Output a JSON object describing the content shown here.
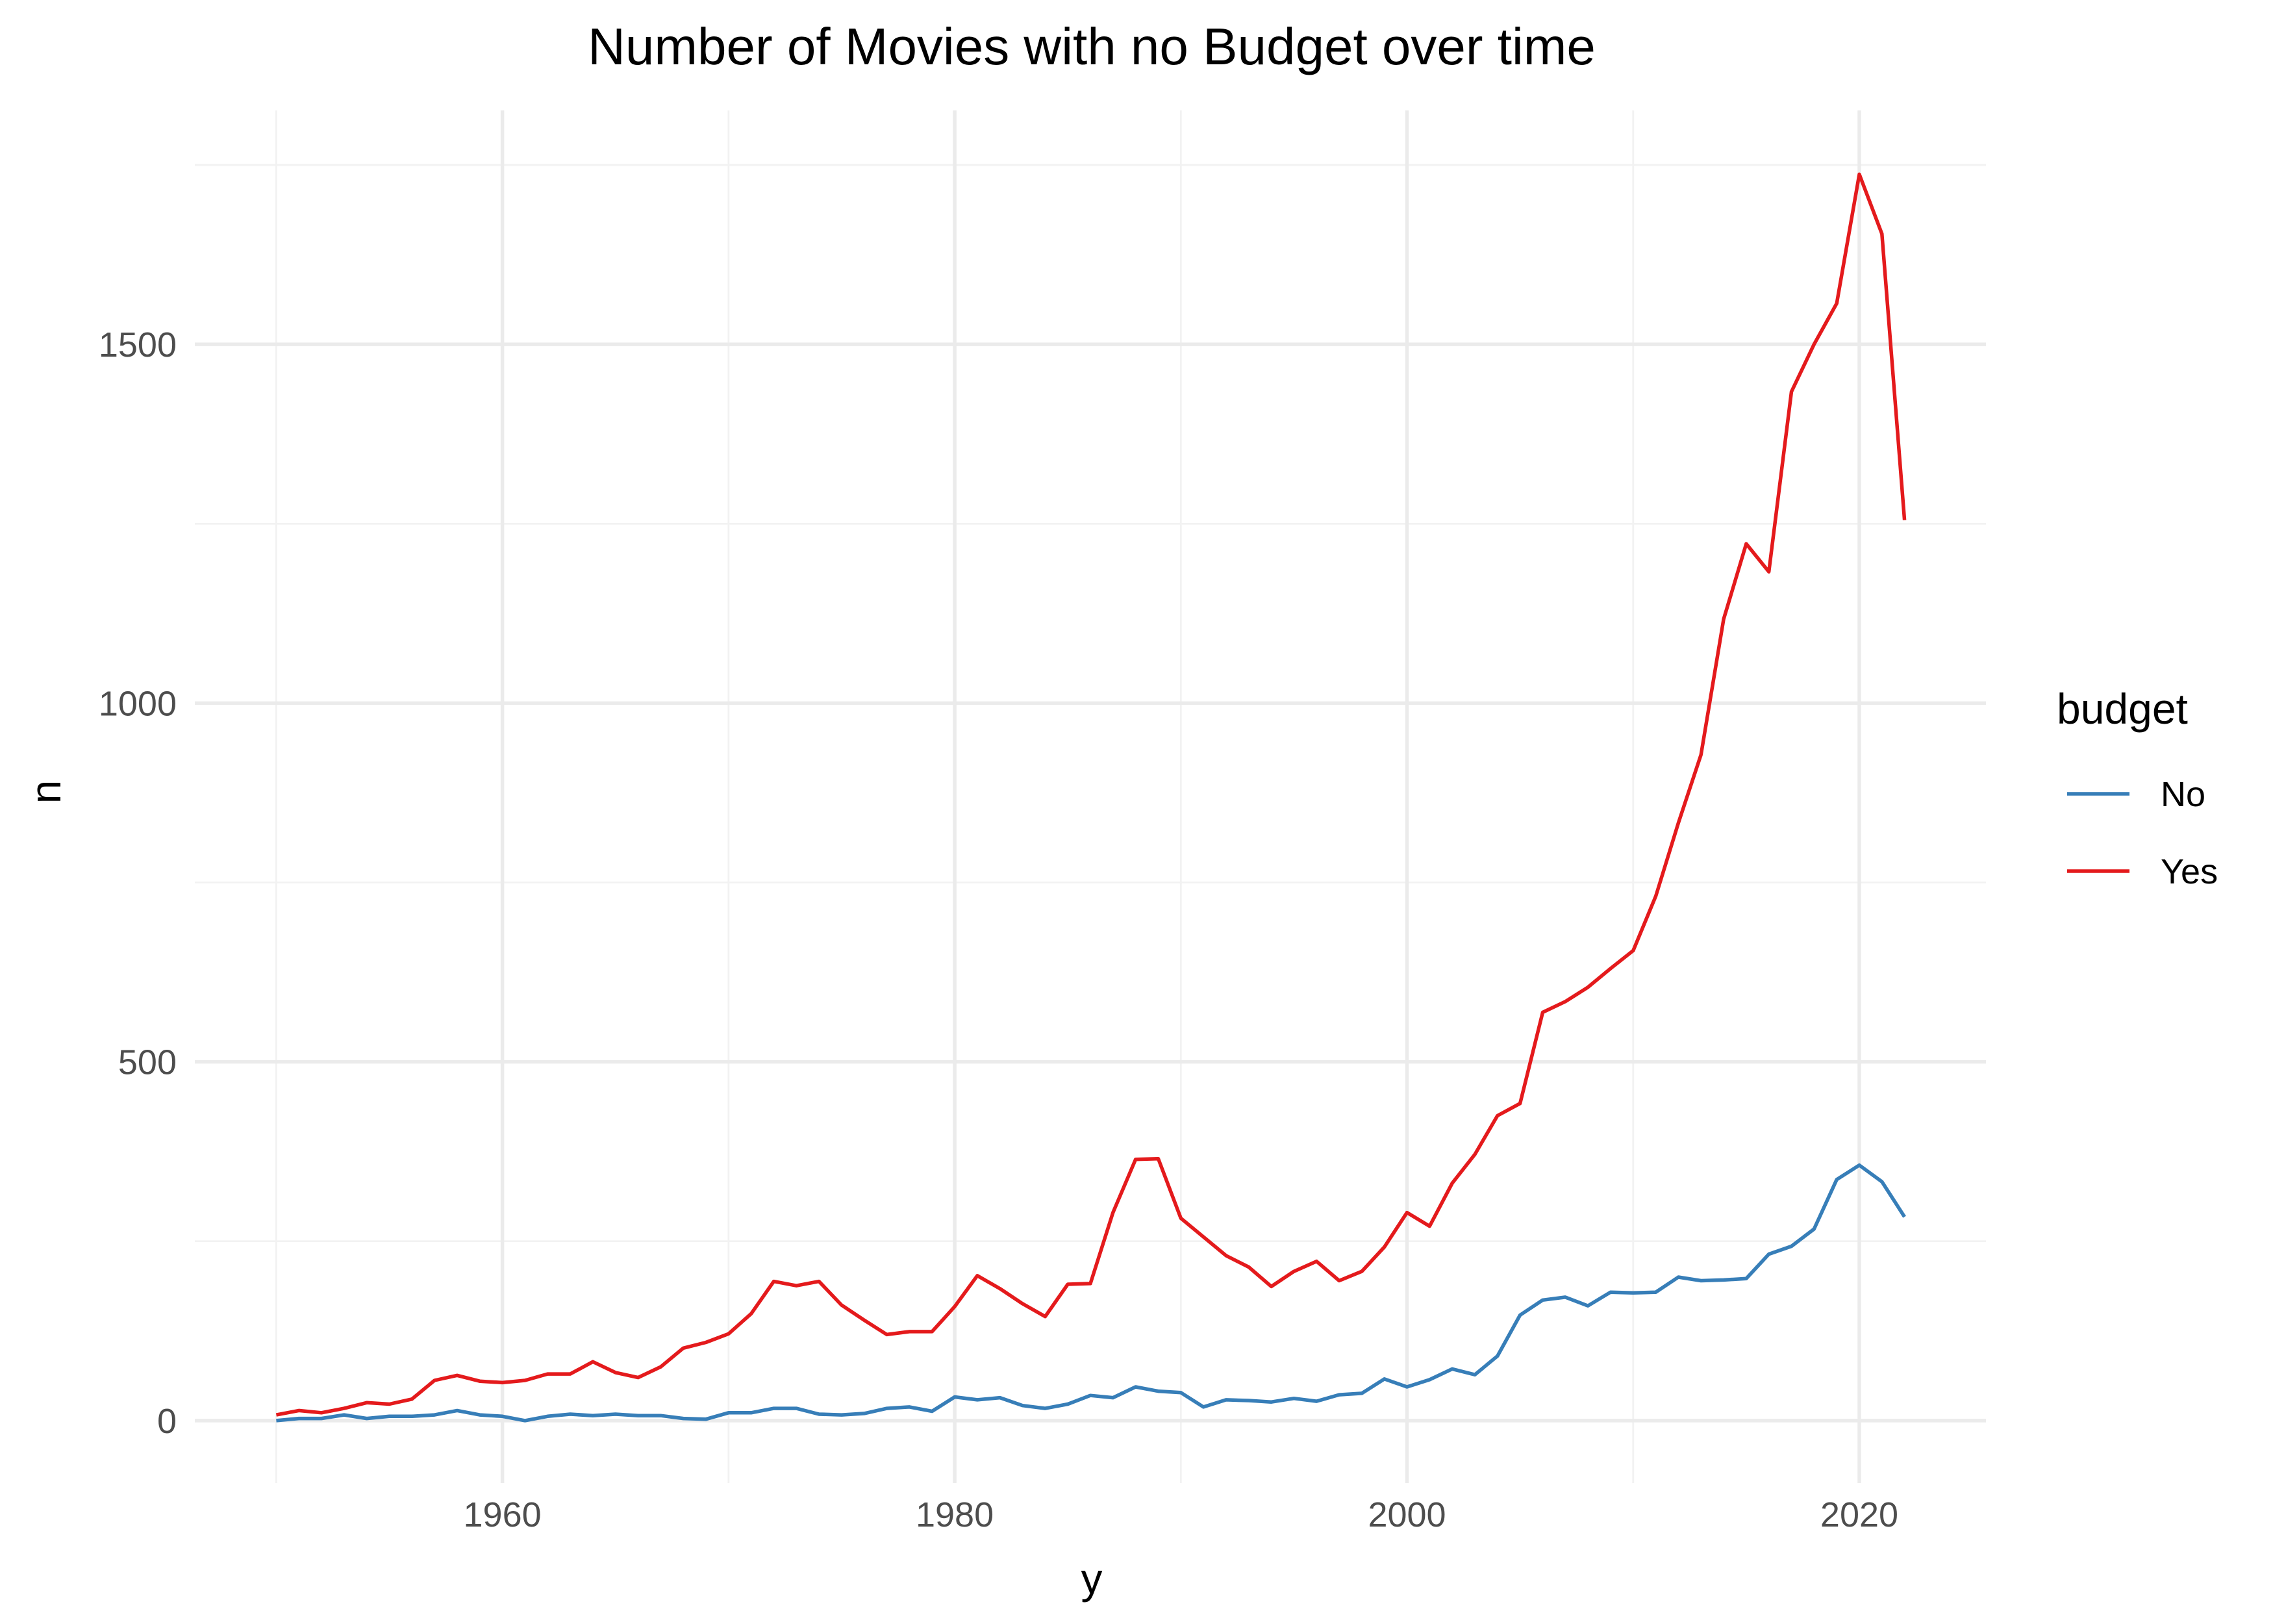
{
  "chart_data": {
    "type": "line",
    "title": "Number of Movies with no Budget over time",
    "xlabel": "y",
    "ylabel": "n",
    "xlim": [
      1946.4,
      2025.6
    ],
    "ylim": [
      -87,
      1826
    ],
    "x_ticks": [
      1960,
      1980,
      2000,
      2020
    ],
    "y_ticks": [
      0,
      500,
      1000,
      1500
    ],
    "x_minor_ticks": [
      1950,
      1970,
      1990,
      2010
    ],
    "y_minor_ticks": [
      250,
      750,
      1250,
      1750
    ],
    "grid": true,
    "legend": {
      "title": "budget",
      "position": "right",
      "entries": [
        "No",
        "Yes"
      ]
    },
    "colors": {
      "No": "#377eb8",
      "Yes": "#e41a1c"
    },
    "x": [
      1950,
      1951,
      1952,
      1953,
      1954,
      1955,
      1956,
      1957,
      1958,
      1959,
      1960,
      1961,
      1962,
      1963,
      1964,
      1965,
      1966,
      1967,
      1968,
      1969,
      1970,
      1971,
      1972,
      1973,
      1974,
      1975,
      1976,
      1977,
      1978,
      1979,
      1980,
      1981,
      1982,
      1983,
      1984,
      1985,
      1986,
      1987,
      1988,
      1989,
      1990,
      1991,
      1992,
      1993,
      1994,
      1995,
      1996,
      1997,
      1998,
      1999,
      2000,
      2001,
      2002,
      2003,
      2004,
      2005,
      2006,
      2007,
      2008,
      2009,
      2010,
      2011,
      2012,
      2013,
      2014,
      2015,
      2016,
      2017,
      2018,
      2019,
      2020,
      2021,
      2022
    ],
    "series": [
      {
        "name": "No",
        "values": [
          0,
          3,
          3,
          8,
          3,
          6,
          6,
          8,
          14,
          8,
          6,
          0,
          6,
          9,
          7,
          9,
          7,
          7,
          3,
          2,
          11,
          11,
          17,
          17,
          9,
          8,
          10,
          17,
          19,
          13,
          33,
          29,
          32,
          21,
          17,
          23,
          35,
          32,
          47,
          41,
          39,
          19,
          29,
          28,
          26,
          31,
          27,
          36,
          38,
          58,
          47,
          57,
          72,
          64,
          90,
          147,
          168,
          172,
          160,
          179,
          178,
          179,
          200,
          195,
          196,
          198,
          232,
          243,
          267,
          336,
          356,
          333,
          284
        ]
      },
      {
        "name": "Yes",
        "values": [
          8,
          14,
          11,
          17,
          25,
          23,
          30,
          56,
          63,
          55,
          53,
          56,
          65,
          65,
          82,
          67,
          60,
          75,
          101,
          109,
          121,
          149,
          194,
          188,
          194,
          161,
          140,
          120,
          124,
          124,
          159,
          202,
          184,
          163,
          145,
          190,
          191,
          290,
          364,
          365,
          282,
          256,
          230,
          214,
          187,
          208,
          222,
          195,
          208,
          242,
          290,
          271,
          331,
          371,
          425,
          442,
          569,
          584,
          604,
          630,
          655,
          731,
          833,
          928,
          1117,
          1222,
          1183,
          1434,
          1500,
          1557,
          1737,
          1654,
          1255
        ]
      }
    ]
  }
}
